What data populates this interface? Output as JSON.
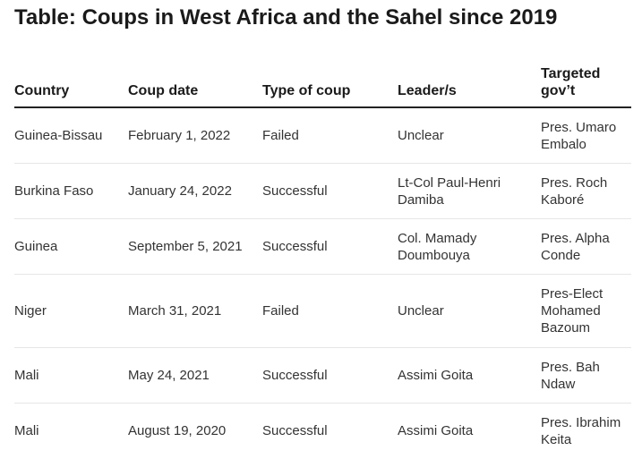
{
  "title": "Table: Coups in West Africa and the Sahel since 2019",
  "table": {
    "headers": [
      "Country",
      "Coup date",
      "Type of coup",
      "Leader/s",
      "Targeted gov’t"
    ],
    "rows": [
      [
        "Guinea-Bissau",
        "February 1, 2022",
        "Failed",
        "Unclear",
        "Pres. Umaro Embalo"
      ],
      [
        "Burkina Faso",
        "January 24, 2022",
        "Successful",
        "Lt-Col Paul-Henri Damiba",
        "Pres. Roch Kaboré"
      ],
      [
        "Guinea",
        "September 5, 2021",
        "Successful",
        "Col. Mamady Doumbouya",
        "Pres. Alpha Conde"
      ],
      [
        "Niger",
        "March 31, 2021",
        "Failed",
        "Unclear",
        "Pres-Elect Mohamed Bazoum"
      ],
      [
        "Mali",
        "May 24, 2021",
        "Successful",
        "Assimi Goita",
        "Pres. Bah Ndaw"
      ],
      [
        "Mali",
        "August 19, 2020",
        "Successful",
        "Assimi Goita",
        "Pres. Ibrahim Keita"
      ]
    ]
  }
}
